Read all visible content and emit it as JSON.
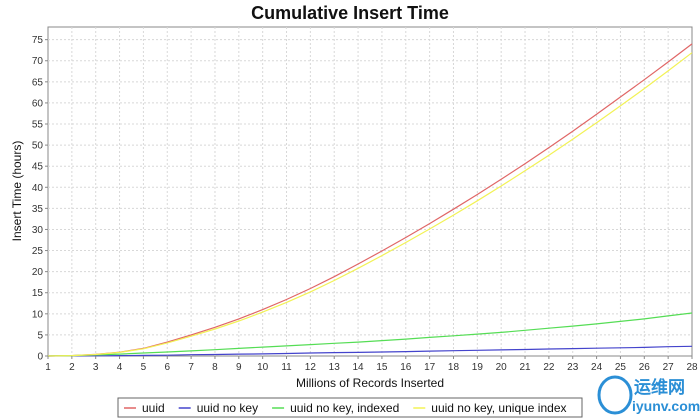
{
  "chart_data": {
    "type": "line",
    "title": "Cumulative Insert Time",
    "xlabel": "Millions of Records Inserted",
    "ylabel": "Insert Time (hours)",
    "xlim": [
      1,
      28
    ],
    "ylim": [
      0,
      78
    ],
    "xticks": [
      1,
      2,
      3,
      4,
      5,
      6,
      7,
      8,
      9,
      10,
      11,
      12,
      13,
      14,
      15,
      16,
      17,
      18,
      19,
      20,
      21,
      22,
      23,
      24,
      25,
      26,
      27,
      28
    ],
    "yticks": [
      0,
      5,
      10,
      15,
      20,
      25,
      30,
      35,
      40,
      45,
      50,
      55,
      60,
      65,
      70,
      75
    ],
    "grid": true,
    "legend_position": "bottom",
    "x": [
      1,
      2,
      3,
      4,
      5,
      6,
      7,
      8,
      9,
      10,
      11,
      12,
      13,
      14,
      15,
      16,
      17,
      18,
      19,
      20,
      21,
      22,
      23,
      24,
      25,
      26,
      27,
      28
    ],
    "series": [
      {
        "name": "uuid",
        "color": "#e06666",
        "values": [
          0,
          0.1,
          0.4,
          0.9,
          1.8,
          3.3,
          5.0,
          6.8,
          8.8,
          11.0,
          13.4,
          16.0,
          18.8,
          21.8,
          24.9,
          28.1,
          31.4,
          34.8,
          38.3,
          41.9,
          45.6,
          49.4,
          53.3,
          57.3,
          61.4,
          65.5,
          69.7,
          74.0
        ]
      },
      {
        "name": "uuid no key",
        "color": "#4444cc",
        "values": [
          0,
          0.02,
          0.05,
          0.1,
          0.15,
          0.2,
          0.3,
          0.35,
          0.45,
          0.5,
          0.6,
          0.7,
          0.8,
          0.85,
          0.95,
          1.05,
          1.15,
          1.25,
          1.35,
          1.45,
          1.55,
          1.65,
          1.75,
          1.85,
          1.95,
          2.05,
          2.2,
          2.3
        ]
      },
      {
        "name": "uuid no key, indexed",
        "color": "#55dd55",
        "values": [
          0,
          0.1,
          0.25,
          0.45,
          0.7,
          0.95,
          1.2,
          1.5,
          1.8,
          2.1,
          2.4,
          2.7,
          3.0,
          3.3,
          3.65,
          4.0,
          4.4,
          4.8,
          5.2,
          5.6,
          6.1,
          6.6,
          7.1,
          7.6,
          8.2,
          8.8,
          9.5,
          10.2
        ]
      },
      {
        "name": "uuid no key, unique index",
        "color": "#f2f255",
        "values": [
          0,
          0.1,
          0.35,
          0.85,
          1.7,
          3.1,
          4.7,
          6.4,
          8.3,
          10.4,
          12.7,
          15.2,
          17.9,
          20.8,
          23.8,
          26.9,
          30.1,
          33.4,
          36.8,
          40.3,
          43.9,
          47.6,
          51.4,
          55.3,
          59.3,
          63.4,
          67.6,
          71.9
        ]
      }
    ]
  },
  "watermark": {
    "cn_text": "运维网",
    "url_text": "iyunv.com"
  }
}
